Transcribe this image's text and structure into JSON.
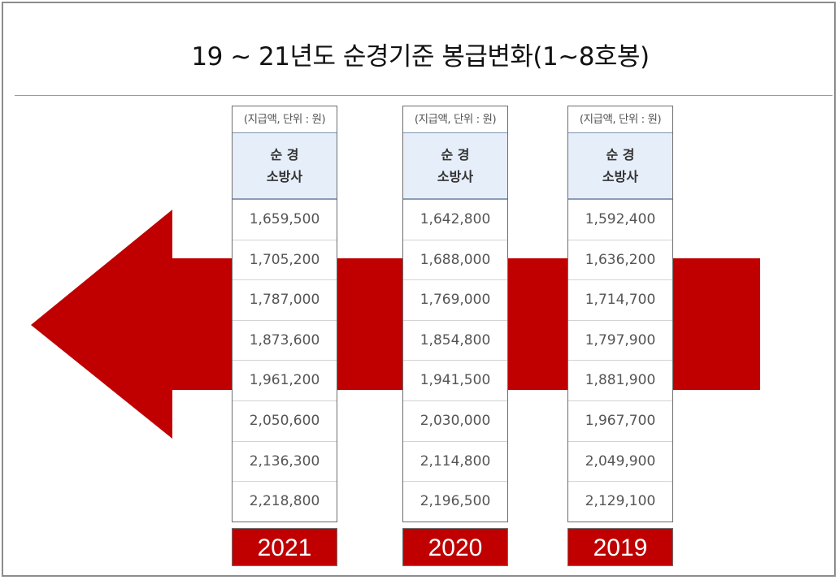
{
  "title": "19 ~ 21년도 순경기준 봉급변화(1~8호봉)",
  "colors": {
    "arrow": "#c00000",
    "header_bg": "#e6eef9",
    "year_bg": "#c00000"
  },
  "chart_data": {
    "type": "table",
    "title": "19 ~ 21년도 순경기준 봉급변화(1~8호봉)",
    "tables": [
      {
        "year": "2021",
        "unit_note": "(지급액, 단위 : 원)",
        "header": [
          "순 경",
          "소방사"
        ],
        "values": [
          "1,659,500",
          "1,705,200",
          "1,787,000",
          "1,873,600",
          "1,961,200",
          "2,050,600",
          "2,136,300",
          "2,218,800"
        ]
      },
      {
        "year": "2020",
        "unit_note": "(지급액, 단위 : 원)",
        "header": [
          "순 경",
          "소방사"
        ],
        "values": [
          "1,642,800",
          "1,688,000",
          "1,769,000",
          "1,854,800",
          "1,941,500",
          "2,030,000",
          "2,114,800",
          "2,196,500"
        ]
      },
      {
        "year": "2019",
        "unit_note": "(지급액, 단위 : 원)",
        "header": [
          "순 경",
          "소방사"
        ],
        "values": [
          "1,592,400",
          "1,636,200",
          "1,714,700",
          "1,797,900",
          "1,881,900",
          "1,967,700",
          "2,049,900",
          "2,129,100"
        ]
      }
    ]
  }
}
